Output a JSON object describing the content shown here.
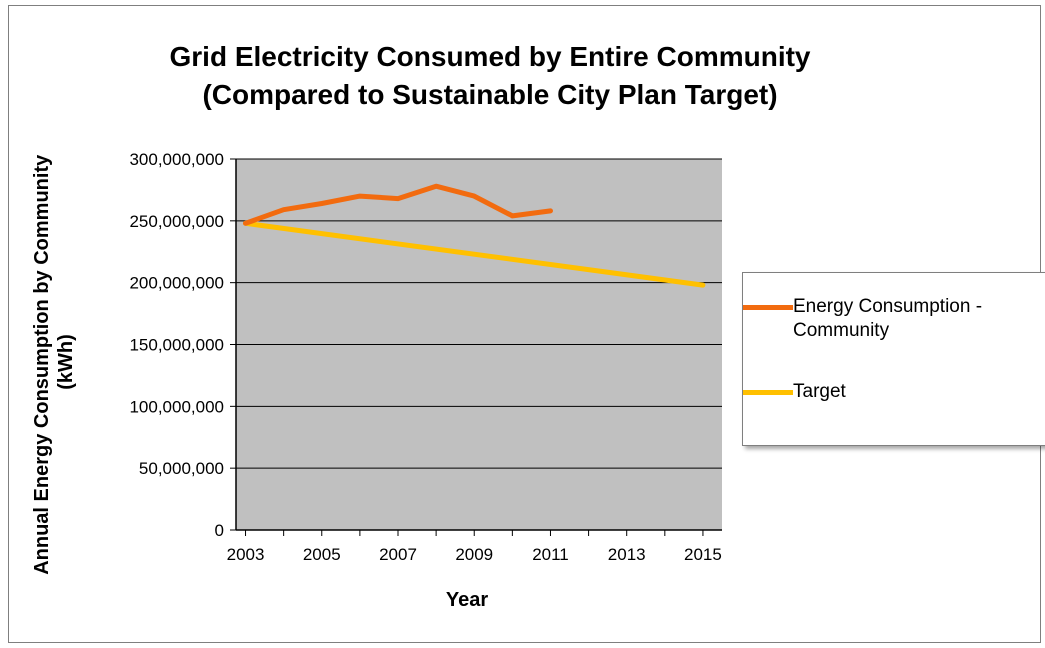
{
  "chart_data": {
    "type": "line",
    "title": [
      "Grid Electricity Consumed by Entire Community",
      "(Compared to Sustainable City Plan Target)"
    ],
    "xlabel": "Year",
    "ylabel": [
      "Annual Energy Consumption by Community",
      "(kWh)"
    ],
    "xlim": [
      2002.75,
      2015.5
    ],
    "ylim": [
      0,
      300000000
    ],
    "x_ticks": [
      "2003",
      "2005",
      "2007",
      "2009",
      "2011",
      "2013",
      "2015"
    ],
    "y_ticks": [
      "300,000,000",
      "250,000,000",
      "200,000,000",
      "150,000,000",
      "100,000,000",
      "50,000,000",
      "0"
    ],
    "grid": true,
    "plot_background": "#c0c0c0",
    "legend_position": "right",
    "series": [
      {
        "name": "Energy Consumption - Community",
        "color": "#f26b0f",
        "x": [
          2003,
          2004,
          2005,
          2006,
          2007,
          2008,
          2009,
          2010,
          2011
        ],
        "y": [
          248000000,
          259000000,
          264000000,
          270000000,
          268000000,
          278000000,
          270000000,
          254000000,
          258000000
        ]
      },
      {
        "name": "Target",
        "color": "#ffc000",
        "x": [
          2003,
          2015
        ],
        "y": [
          248000000,
          198000000
        ]
      }
    ]
  }
}
